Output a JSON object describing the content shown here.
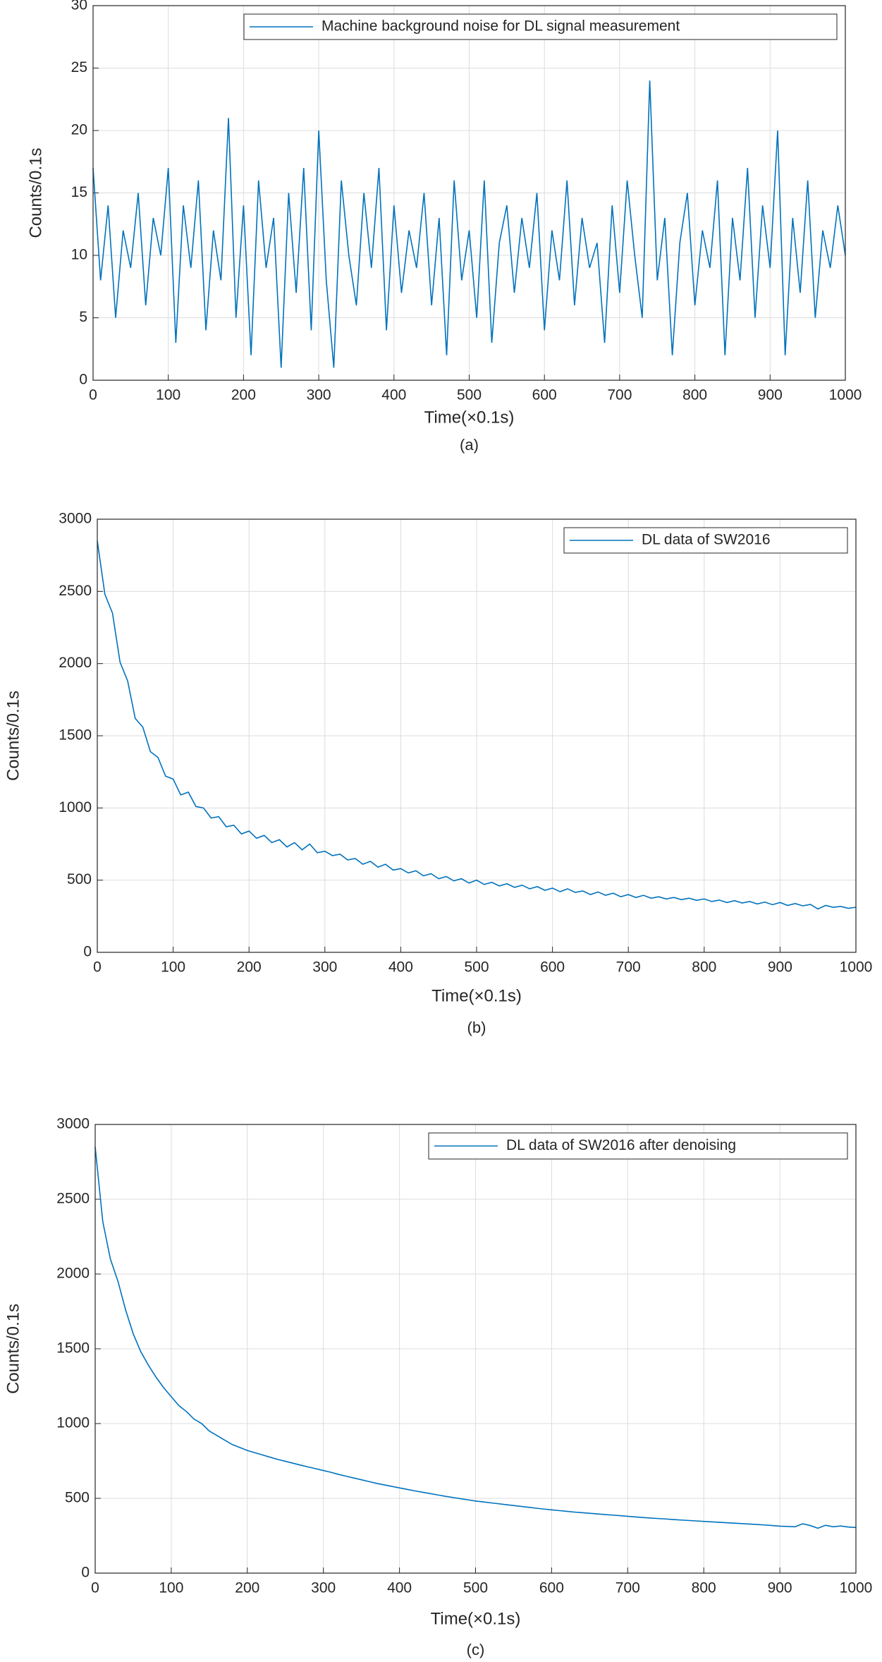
{
  "chart_data": [
    {
      "type": "line",
      "caption": "(a)",
      "xlabel": "Time(×0.1s)",
      "ylabel": "Counts/0.1s",
      "x": [
        0,
        10,
        20,
        30,
        40,
        50,
        60,
        70,
        80,
        90,
        100,
        110,
        120,
        130,
        140,
        150,
        160,
        170,
        180,
        190,
        200,
        210,
        220,
        230,
        240,
        250,
        260,
        270,
        280,
        290,
        300,
        310,
        320,
        330,
        340,
        350,
        360,
        370,
        380,
        390,
        400,
        410,
        420,
        430,
        440,
        450,
        460,
        470,
        480,
        490,
        500,
        510,
        520,
        530,
        540,
        550,
        560,
        570,
        580,
        590,
        600,
        610,
        620,
        630,
        640,
        650,
        660,
        670,
        680,
        690,
        700,
        710,
        720,
        730,
        740,
        750,
        760,
        770,
        780,
        790,
        800,
        810,
        820,
        830,
        840,
        850,
        860,
        870,
        880,
        890,
        900,
        910,
        920,
        930,
        940,
        950,
        960,
        970,
        980,
        990,
        1000
      ],
      "series": [
        {
          "name": "Machine background noise for DL signal measurement",
          "color": "#0072bd",
          "values": [
            17,
            8,
            14,
            5,
            12,
            9,
            15,
            6,
            13,
            10,
            17,
            3,
            14,
            9,
            16,
            4,
            12,
            8,
            21,
            5,
            14,
            2,
            16,
            9,
            13,
            1,
            15,
            7,
            17,
            4,
            20,
            8,
            1,
            16,
            10,
            6,
            15,
            9,
            17,
            4,
            14,
            7,
            12,
            9,
            15,
            6,
            13,
            2,
            16,
            8,
            12,
            5,
            16,
            3,
            11,
            14,
            7,
            13,
            9,
            15,
            4,
            12,
            8,
            16,
            6,
            13,
            9,
            11,
            3,
            14,
            7,
            16,
            10,
            5,
            24,
            8,
            13,
            2,
            11,
            15,
            6,
            12,
            9,
            16,
            2,
            13,
            8,
            17,
            5,
            14,
            9,
            20,
            2,
            13,
            7,
            16,
            5,
            12,
            9,
            14,
            10
          ]
        }
      ],
      "xlim": [
        0,
        1000
      ],
      "ylim": [
        0,
        30
      ],
      "xticks": [
        0,
        100,
        200,
        300,
        400,
        500,
        600,
        700,
        800,
        900,
        1000
      ],
      "yticks": [
        0,
        5,
        10,
        15,
        20,
        25,
        30
      ],
      "grid": true,
      "legend": "top-right"
    },
    {
      "type": "line",
      "caption": "(b)",
      "xlabel": "Time(×0.1s)",
      "ylabel": "Counts/0.1s",
      "x": [
        0,
        10,
        20,
        30,
        40,
        50,
        60,
        70,
        80,
        90,
        100,
        110,
        120,
        130,
        140,
        150,
        160,
        170,
        180,
        190,
        200,
        210,
        220,
        230,
        240,
        250,
        260,
        270,
        280,
        290,
        300,
        310,
        320,
        330,
        340,
        350,
        360,
        370,
        380,
        390,
        400,
        410,
        420,
        430,
        440,
        450,
        460,
        470,
        480,
        490,
        500,
        510,
        520,
        530,
        540,
        550,
        560,
        570,
        580,
        590,
        600,
        610,
        620,
        630,
        640,
        650,
        660,
        670,
        680,
        690,
        700,
        710,
        720,
        730,
        740,
        750,
        760,
        770,
        780,
        790,
        800,
        810,
        820,
        830,
        840,
        850,
        860,
        870,
        880,
        890,
        900,
        910,
        920,
        930,
        940,
        950,
        960,
        970,
        980,
        990,
        1000
      ],
      "series": [
        {
          "name": "DL data of SW2016",
          "color": "#0072bd",
          "values": [
            2850,
            2480,
            2350,
            2010,
            1880,
            1620,
            1560,
            1390,
            1350,
            1220,
            1200,
            1090,
            1110,
            1010,
            1000,
            930,
            940,
            870,
            880,
            820,
            840,
            790,
            810,
            760,
            780,
            730,
            760,
            710,
            750,
            690,
            700,
            670,
            680,
            640,
            650,
            610,
            630,
            590,
            610,
            570,
            580,
            550,
            565,
            530,
            545,
            510,
            525,
            495,
            510,
            480,
            500,
            470,
            485,
            460,
            475,
            450,
            465,
            440,
            455,
            430,
            445,
            420,
            440,
            415,
            425,
            400,
            418,
            395,
            410,
            385,
            400,
            380,
            395,
            375,
            385,
            370,
            380,
            365,
            375,
            360,
            370,
            352,
            362,
            345,
            358,
            342,
            352,
            335,
            348,
            330,
            345,
            325,
            338,
            322,
            332,
            300,
            325,
            312,
            318,
            305,
            312
          ]
        }
      ],
      "xlim": [
        0,
        1000
      ],
      "ylim": [
        0,
        3000
      ],
      "xticks": [
        0,
        100,
        200,
        300,
        400,
        500,
        600,
        700,
        800,
        900,
        1000
      ],
      "yticks": [
        0,
        500,
        1000,
        1500,
        2000,
        2500,
        3000
      ],
      "grid": true,
      "legend": "top-right"
    },
    {
      "type": "line",
      "caption": "(c)",
      "xlabel": "Time(×0.1s)",
      "ylabel": "Counts/0.1s",
      "x": [
        0,
        10,
        20,
        30,
        40,
        50,
        60,
        70,
        80,
        90,
        100,
        110,
        120,
        130,
        140,
        150,
        160,
        170,
        180,
        190,
        200,
        210,
        220,
        230,
        240,
        250,
        260,
        270,
        280,
        290,
        300,
        310,
        320,
        330,
        340,
        350,
        360,
        370,
        380,
        390,
        400,
        410,
        420,
        430,
        440,
        450,
        460,
        470,
        480,
        490,
        500,
        510,
        520,
        530,
        540,
        550,
        560,
        570,
        580,
        590,
        600,
        610,
        620,
        630,
        640,
        650,
        660,
        670,
        680,
        690,
        700,
        710,
        720,
        730,
        740,
        750,
        760,
        770,
        780,
        790,
        800,
        810,
        820,
        830,
        840,
        850,
        860,
        870,
        880,
        890,
        900,
        910,
        920,
        930,
        940,
        950,
        960,
        970,
        980,
        990,
        1000
      ],
      "series": [
        {
          "name": "DL data of SW2016 after denoising",
          "color": "#0072bd",
          "values": [
            2850,
            2350,
            2100,
            1950,
            1760,
            1600,
            1480,
            1390,
            1310,
            1240,
            1180,
            1120,
            1080,
            1030,
            1000,
            950,
            920,
            890,
            860,
            840,
            820,
            805,
            790,
            775,
            760,
            748,
            735,
            722,
            710,
            698,
            686,
            674,
            660,
            648,
            636,
            624,
            612,
            600,
            590,
            580,
            570,
            560,
            550,
            541,
            532,
            523,
            514,
            506,
            498,
            490,
            482,
            476,
            470,
            464,
            458,
            452,
            446,
            440,
            434,
            428,
            423,
            418,
            413,
            408,
            404,
            400,
            396,
            392,
            388,
            384,
            380,
            376,
            372,
            368,
            365,
            362,
            358,
            355,
            352,
            349,
            346,
            343,
            340,
            337,
            334,
            331,
            328,
            325,
            322,
            318,
            314,
            312,
            310,
            330,
            318,
            300,
            320,
            310,
            315,
            308,
            305
          ]
        }
      ],
      "xlim": [
        0,
        1000
      ],
      "ylim": [
        0,
        3000
      ],
      "xticks": [
        0,
        100,
        200,
        300,
        400,
        500,
        600,
        700,
        800,
        900,
        1000
      ],
      "yticks": [
        0,
        500,
        1000,
        1500,
        2000,
        2500,
        3000
      ],
      "grid": true,
      "legend": "top-right"
    }
  ]
}
